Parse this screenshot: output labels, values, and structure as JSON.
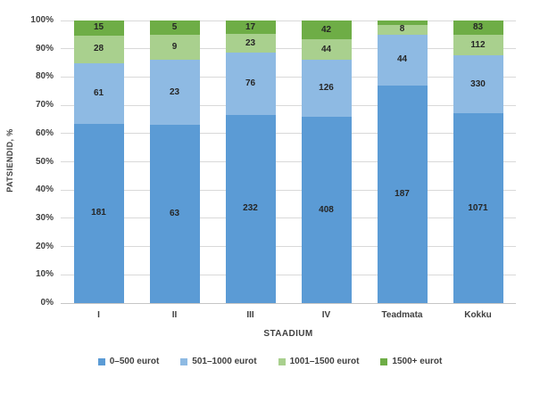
{
  "chart_data": {
    "type": "bar",
    "variant": "stacked-100-percent",
    "title": "",
    "xlabel": "STAADIUM",
    "ylabel": "PATSIENDID, %",
    "categories": [
      "I",
      "II",
      "III",
      "IV",
      "Teadmata",
      "Kokku"
    ],
    "series": [
      {
        "name": "0–500 eurot",
        "color": "#5b9bd5",
        "values": [
          181,
          63,
          232,
          408,
          187,
          1071
        ],
        "labels": [
          "181",
          "63",
          "232",
          "408",
          "187",
          "1071"
        ]
      },
      {
        "name": "501–1000 eurot",
        "color": "#8ebae3",
        "values": [
          61,
          23,
          76,
          126,
          44,
          330
        ],
        "labels": [
          "61",
          "23",
          "76",
          "126",
          "44",
          "330"
        ]
      },
      {
        "name": "1001–1500 eurot",
        "color": "#a9d08e",
        "values": [
          28,
          9,
          23,
          44,
          8,
          112
        ],
        "labels": [
          "28",
          "9",
          "23",
          "44",
          "8",
          "112"
        ]
      },
      {
        "name": "1500+ eurot",
        "color": "#6ead46",
        "values": [
          15,
          5,
          17,
          42,
          4,
          83
        ],
        "labels": [
          "15",
          "5",
          "17",
          "42",
          "",
          "83"
        ]
      }
    ],
    "y_ticks": [
      "0%",
      "10%",
      "20%",
      "30%",
      "40%",
      "50%",
      "60%",
      "70%",
      "80%",
      "90%",
      "100%"
    ],
    "ylim": [
      0,
      100
    ],
    "grid": true,
    "gridline_color": "#d9d9d9",
    "legend_position": "bottom"
  }
}
